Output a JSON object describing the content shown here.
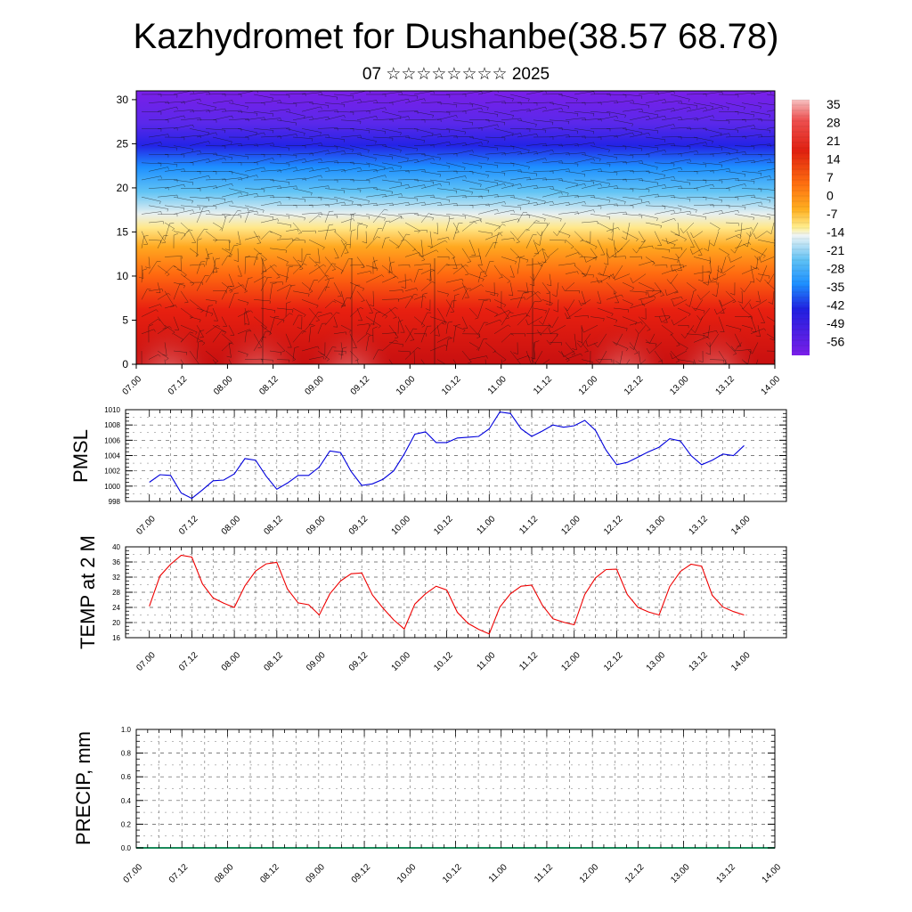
{
  "title": "Kazhydromet for Dushanbe(38.57 68.78)",
  "subtitle": "07 ☆☆☆☆☆☆☆☆ 2025",
  "chart_data": [
    {
      "type": "heatmap",
      "x_ticks": [
        "07.00",
        "07.12",
        "08.00",
        "08.12",
        "09.00",
        "09.12",
        "10.00",
        "10.12",
        "11.00",
        "11.12",
        "12.00",
        "12.12",
        "13.00",
        "13.12",
        "14.00"
      ],
      "y_ticks": [
        "0",
        "5",
        "10",
        "15",
        "20",
        "25",
        "30"
      ],
      "ylim": [
        0,
        31
      ],
      "colorbar_labels": [
        "35",
        "28",
        "21",
        "14",
        "7",
        "0",
        "-7",
        "-14",
        "-21",
        "-28",
        "-35",
        "-42",
        "-49",
        "-56"
      ],
      "colors": [
        "#7a1fe8",
        "#2323e6",
        "#1e90ff",
        "#e3f0f5",
        "#ffe88a",
        "#ffa500",
        "#f03010",
        "#c81010",
        "#f08080"
      ],
      "overlay": "wind barbs"
    },
    {
      "type": "line",
      "ylabel": "PMSL",
      "x_ticks": [
        "07.00",
        "07.12",
        "08.00",
        "08.12",
        "09.00",
        "09.12",
        "10.00",
        "10.12",
        "11.00",
        "11.12",
        "12.00",
        "12.12",
        "13.00",
        "13.12",
        "14.00"
      ],
      "y_ticks": [
        "998",
        "1000",
        "1002",
        "1004",
        "1006",
        "1008",
        "1010"
      ],
      "ylim": [
        998,
        1010
      ],
      "series": [
        {
          "color": "#0000dd",
          "values": [
            1000.5,
            1001.5,
            1001.4,
            999.1,
            998.4,
            999.5,
            1000.7,
            1000.8,
            1001.6,
            1003.6,
            1003.4,
            1001.3,
            999.6,
            1000.4,
            1001.4,
            1001.4,
            1002.5,
            1004.6,
            1004.4,
            1001.9,
            1000.1,
            1000.3,
            1000.9,
            1002.0,
            1004.2,
            1006.8,
            1007.1,
            1005.7,
            1005.7,
            1006.3,
            1006.4,
            1006.5,
            1007.5,
            1009.7,
            1009.5,
            1007.5,
            1006.5,
            1007.2,
            1008.0,
            1007.7,
            1007.9,
            1008.6,
            1007.3,
            1004.7,
            1002.8,
            1003.1,
            1003.8,
            1004.5,
            1005.1,
            1006.2,
            1005.9,
            1004.0,
            1002.8,
            1003.4,
            1004.2,
            1004.0,
            1005.3
          ]
        }
      ]
    },
    {
      "type": "line",
      "ylabel": "TEMP at 2 M",
      "x_ticks": [
        "07.00",
        "07.12",
        "08.00",
        "08.12",
        "09.00",
        "09.12",
        "10.00",
        "10.12",
        "11.00",
        "11.12",
        "12.00",
        "12.12",
        "13.00",
        "13.12",
        "14.00"
      ],
      "y_ticks": [
        "16",
        "20",
        "24",
        "28",
        "32",
        "36",
        "40"
      ],
      "ylim": [
        16,
        40
      ],
      "series": [
        {
          "color": "#ee0000",
          "values": [
            24.3,
            32.3,
            35.4,
            37.8,
            37.3,
            30.2,
            26.5,
            25.1,
            24.0,
            29.7,
            33.6,
            35.5,
            35.9,
            28.9,
            25.2,
            24.7,
            22.0,
            27.6,
            31.0,
            32.9,
            33.1,
            27.3,
            23.8,
            20.7,
            18.3,
            24.9,
            27.6,
            29.6,
            28.6,
            22.7,
            19.8,
            18.2,
            17.0,
            24.1,
            27.6,
            29.6,
            29.9,
            24.6,
            21.0,
            20.1,
            19.4,
            27.4,
            31.8,
            34.0,
            34.1,
            27.4,
            24.0,
            22.8,
            22.0,
            29.5,
            33.5,
            35.4,
            34.9,
            27.2,
            24.1,
            22.9,
            22.0
          ]
        }
      ]
    },
    {
      "type": "bar",
      "ylabel": "PRECIP, mm",
      "x_ticks": [
        "07.00",
        "07.12",
        "08.00",
        "08.12",
        "09.00",
        "09.12",
        "10.00",
        "10.12",
        "11.00",
        "11.12",
        "12.00",
        "12.12",
        "13.00",
        "13.12",
        "14.00"
      ],
      "y_ticks": [
        "0.0",
        "0.2",
        "0.4",
        "0.6",
        "0.8",
        "1.0"
      ],
      "ylim": [
        0,
        1
      ],
      "values": []
    }
  ]
}
